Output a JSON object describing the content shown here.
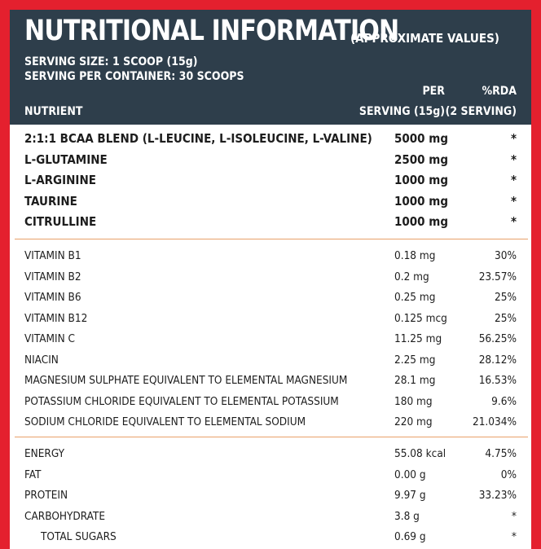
{
  "header": {
    "title": "NUTRITIONAL INFORMATION",
    "title_note": "(APPROXIMATE VALUES)",
    "serving_size": "SERVING SIZE: 1 SCOOP (15g)",
    "servings_per_container": "SERVING PER CONTAINER: 30 SCOOPS",
    "col_nutrient": "NUTRIENT",
    "col_per_line1": "PER",
    "col_per_line2": "SERVING (15g)",
    "col_rda_line1": "%RDA",
    "col_rda_line2": "(2 SERVING)"
  },
  "sections": [
    {
      "style": "bold",
      "rows": [
        {
          "name": "2:1:1 BCAA BLEND (L-LEUCINE, L-ISOLEUCINE, L-VALINE)",
          "amount": "5000 mg",
          "rda": "*"
        },
        {
          "name": "L-GLUTAMINE",
          "amount": "2500 mg",
          "rda": "*"
        },
        {
          "name": "L-ARGININE",
          "amount": "1000 mg",
          "rda": "*"
        },
        {
          "name": "TAURINE",
          "amount": "1000 mg",
          "rda": "*"
        },
        {
          "name": "CITRULLINE",
          "amount": "1000 mg",
          "rda": "*"
        }
      ]
    },
    {
      "style": "norm",
      "rows": [
        {
          "name": "VITAMIN B1",
          "amount": "0.18 mg",
          "rda": "30%"
        },
        {
          "name": "VITAMIN B2",
          "amount": "0.2 mg",
          "rda": "23.57%"
        },
        {
          "name": "VITAMIN B6",
          "amount": "0.25 mg",
          "rda": "25%"
        },
        {
          "name": "VITAMIN B12",
          "amount": "0.125 mcg",
          "rda": "25%"
        },
        {
          "name": "VITAMIN C",
          "amount": "11.25 mg",
          "rda": "56.25%"
        },
        {
          "name": "NIACIN",
          "amount": "2.25 mg",
          "rda": "28.12%"
        },
        {
          "name": "MAGNESIUM SULPHATE EQUIVALENT TO ELEMENTAL MAGNESIUM",
          "amount": "28.1 mg",
          "rda": "16.53%"
        },
        {
          "name": "POTASSIUM CHLORIDE EQUIVALENT TO ELEMENTAL POTASSIUM",
          "amount": "180 mg",
          "rda": "9.6%"
        },
        {
          "name": "SODIUM CHLORIDE EQUIVALENT TO ELEMENTAL SODIUM",
          "amount": "220 mg",
          "rda": "21.034%"
        }
      ]
    },
    {
      "style": "norm",
      "rows": [
        {
          "name": "ENERGY",
          "amount": "55.08 kcal",
          "rda": "4.75%"
        },
        {
          "name": "FAT",
          "amount": "0.00 g",
          "rda": "0%"
        },
        {
          "name": "PROTEIN",
          "amount": "9.97 g",
          "rda": "33.23%"
        },
        {
          "name": "CARBOHYDRATE",
          "amount": "3.8 g",
          "rda": "*"
        },
        {
          "name": "TOTAL SUGARS",
          "amount": "0.69 g",
          "rda": "*",
          "indent": true
        }
      ]
    }
  ],
  "colors": {
    "border": "#e4202e",
    "header_bg": "#2e3e4b",
    "separator": "#e8a06a"
  }
}
